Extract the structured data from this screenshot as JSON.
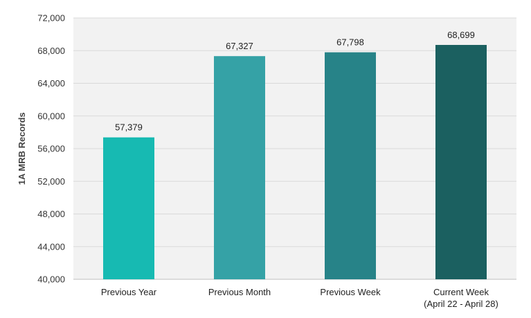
{
  "chart_data": {
    "type": "bar",
    "title": "",
    "xlabel": "",
    "ylabel": "1A MRB Records",
    "ylim": [
      40000,
      72000
    ],
    "yticks": [
      40000,
      44000,
      48000,
      52000,
      56000,
      60000,
      64000,
      68000,
      72000
    ],
    "ytick_labels": [
      "40,000",
      "44,000",
      "48,000",
      "52,000",
      "56,000",
      "60,000",
      "64,000",
      "68,000",
      "72,000"
    ],
    "grid": true,
    "categories": [
      [
        "Previous Year"
      ],
      [
        "Previous Month"
      ],
      [
        "Previous Week"
      ],
      [
        "Current Week",
        "(April 22 - April 28)"
      ]
    ],
    "values": [
      57379,
      67327,
      67798,
      68699
    ],
    "value_labels": [
      "57,379",
      "67,327",
      "67,798",
      "68,699"
    ],
    "bar_colors": [
      "#17bab2",
      "#35a2a6",
      "#278388",
      "#1b6060"
    ],
    "plot_background": "#f2f2f2",
    "grid_color": "#d9d9d9"
  }
}
